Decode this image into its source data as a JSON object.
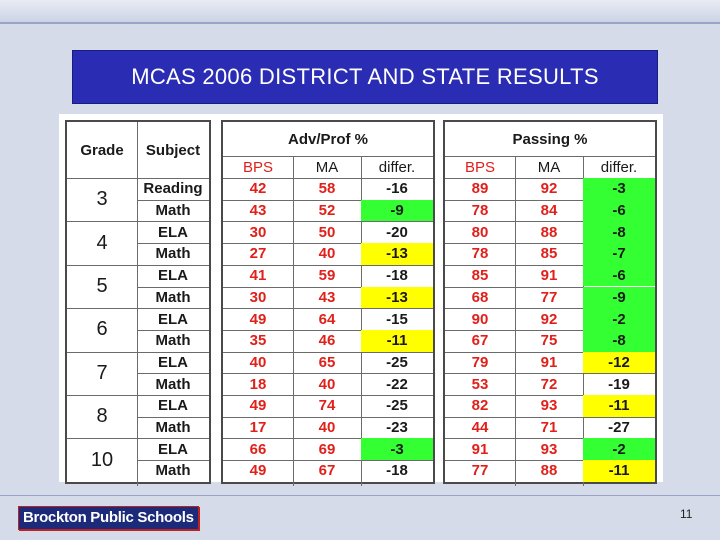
{
  "title": "MCAS 2006 DISTRICT AND STATE RESULTS",
  "headers": {
    "grade": "Grade",
    "subject": "Subject",
    "adv_prof": "Adv/Prof %",
    "passing": "Passing %",
    "sub": [
      "BPS",
      "MA",
      "differ."
    ]
  },
  "grades": [
    "3",
    "4",
    "5",
    "6",
    "7",
    "8",
    "10"
  ],
  "rows": [
    {
      "subject": "Reading",
      "ap": [
        "42",
        "58",
        "-16"
      ],
      "ps": [
        "89",
        "92",
        "-3"
      ],
      "ap_hl": "",
      "ps_hl": "green"
    },
    {
      "subject": "Math",
      "ap": [
        "43",
        "52",
        "-9"
      ],
      "ps": [
        "78",
        "84",
        "-6"
      ],
      "ap_hl": "green",
      "ps_hl": "green"
    },
    {
      "subject": "ELA",
      "ap": [
        "30",
        "50",
        "-20"
      ],
      "ps": [
        "80",
        "88",
        "-8"
      ],
      "ap_hl": "",
      "ps_hl": "green"
    },
    {
      "subject": "Math",
      "ap": [
        "27",
        "40",
        "-13"
      ],
      "ps": [
        "78",
        "85",
        "-7"
      ],
      "ap_hl": "yellow",
      "ps_hl": "green"
    },
    {
      "subject": "ELA",
      "ap": [
        "41",
        "59",
        "-18"
      ],
      "ps": [
        "85",
        "91",
        "-6"
      ],
      "ap_hl": "",
      "ps_hl": "green"
    },
    {
      "subject": "Math",
      "ap": [
        "30",
        "43",
        "-13"
      ],
      "ps": [
        "68",
        "77",
        "-9"
      ],
      "ap_hl": "yellow",
      "ps_hl": "green"
    },
    {
      "subject": "ELA",
      "ap": [
        "49",
        "64",
        "-15"
      ],
      "ps": [
        "90",
        "92",
        "-2"
      ],
      "ap_hl": "",
      "ps_hl": "green"
    },
    {
      "subject": "Math",
      "ap": [
        "35",
        "46",
        "-11"
      ],
      "ps": [
        "67",
        "75",
        "-8"
      ],
      "ap_hl": "yellow",
      "ps_hl": "green"
    },
    {
      "subject": "ELA",
      "ap": [
        "40",
        "65",
        "-25"
      ],
      "ps": [
        "79",
        "91",
        "-12"
      ],
      "ap_hl": "",
      "ps_hl": "yellow"
    },
    {
      "subject": "Math",
      "ap": [
        "18",
        "40",
        "-22"
      ],
      "ps": [
        "53",
        "72",
        "-19"
      ],
      "ap_hl": "",
      "ps_hl": ""
    },
    {
      "subject": "ELA",
      "ap": [
        "49",
        "74",
        "-25"
      ],
      "ps": [
        "82",
        "93",
        "-11"
      ],
      "ap_hl": "",
      "ps_hl": "yellow"
    },
    {
      "subject": "Math",
      "ap": [
        "17",
        "40",
        "-23"
      ],
      "ps": [
        "44",
        "71",
        "-27"
      ],
      "ap_hl": "",
      "ps_hl": ""
    },
    {
      "subject": "ELA",
      "ap": [
        "66",
        "69",
        "-3"
      ],
      "ps": [
        "91",
        "93",
        "-2"
      ],
      "ap_hl": "green",
      "ps_hl": "green"
    },
    {
      "subject": "Math",
      "ap": [
        "49",
        "67",
        "-18"
      ],
      "ps": [
        "77",
        "88",
        "-11"
      ],
      "ap_hl": "",
      "ps_hl": "yellow"
    }
  ],
  "colors": {
    "highlight_yellow": "#ffff00",
    "highlight_green": "#33ff33",
    "value_red": "#e0201a",
    "title_bg": "#2a2db4"
  },
  "footer": {
    "logo_text": "Brockton Public Schools",
    "page_number": "11"
  }
}
